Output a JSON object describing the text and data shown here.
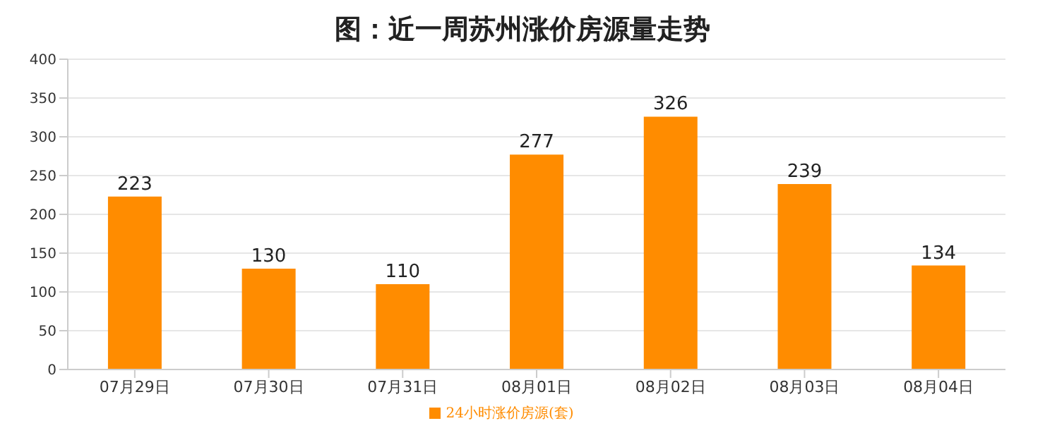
{
  "chart_data": {
    "type": "bar",
    "title": "图：近一周苏州涨价房源量走势",
    "categories": [
      "07月29日",
      "07月30日",
      "07月31日",
      "08月01日",
      "08月02日",
      "08月03日",
      "08月04日"
    ],
    "series": [
      {
        "name": "24小时涨价房源(套)",
        "color": "#ff8c00",
        "values": [
          223,
          130,
          110,
          277,
          326,
          239,
          134
        ]
      }
    ],
    "ylim": [
      0,
      400
    ],
    "yticks": [
      0,
      50,
      100,
      150,
      200,
      250,
      300,
      350,
      400
    ],
    "grid": "y",
    "legend": "bottom",
    "data_labels": true
  }
}
